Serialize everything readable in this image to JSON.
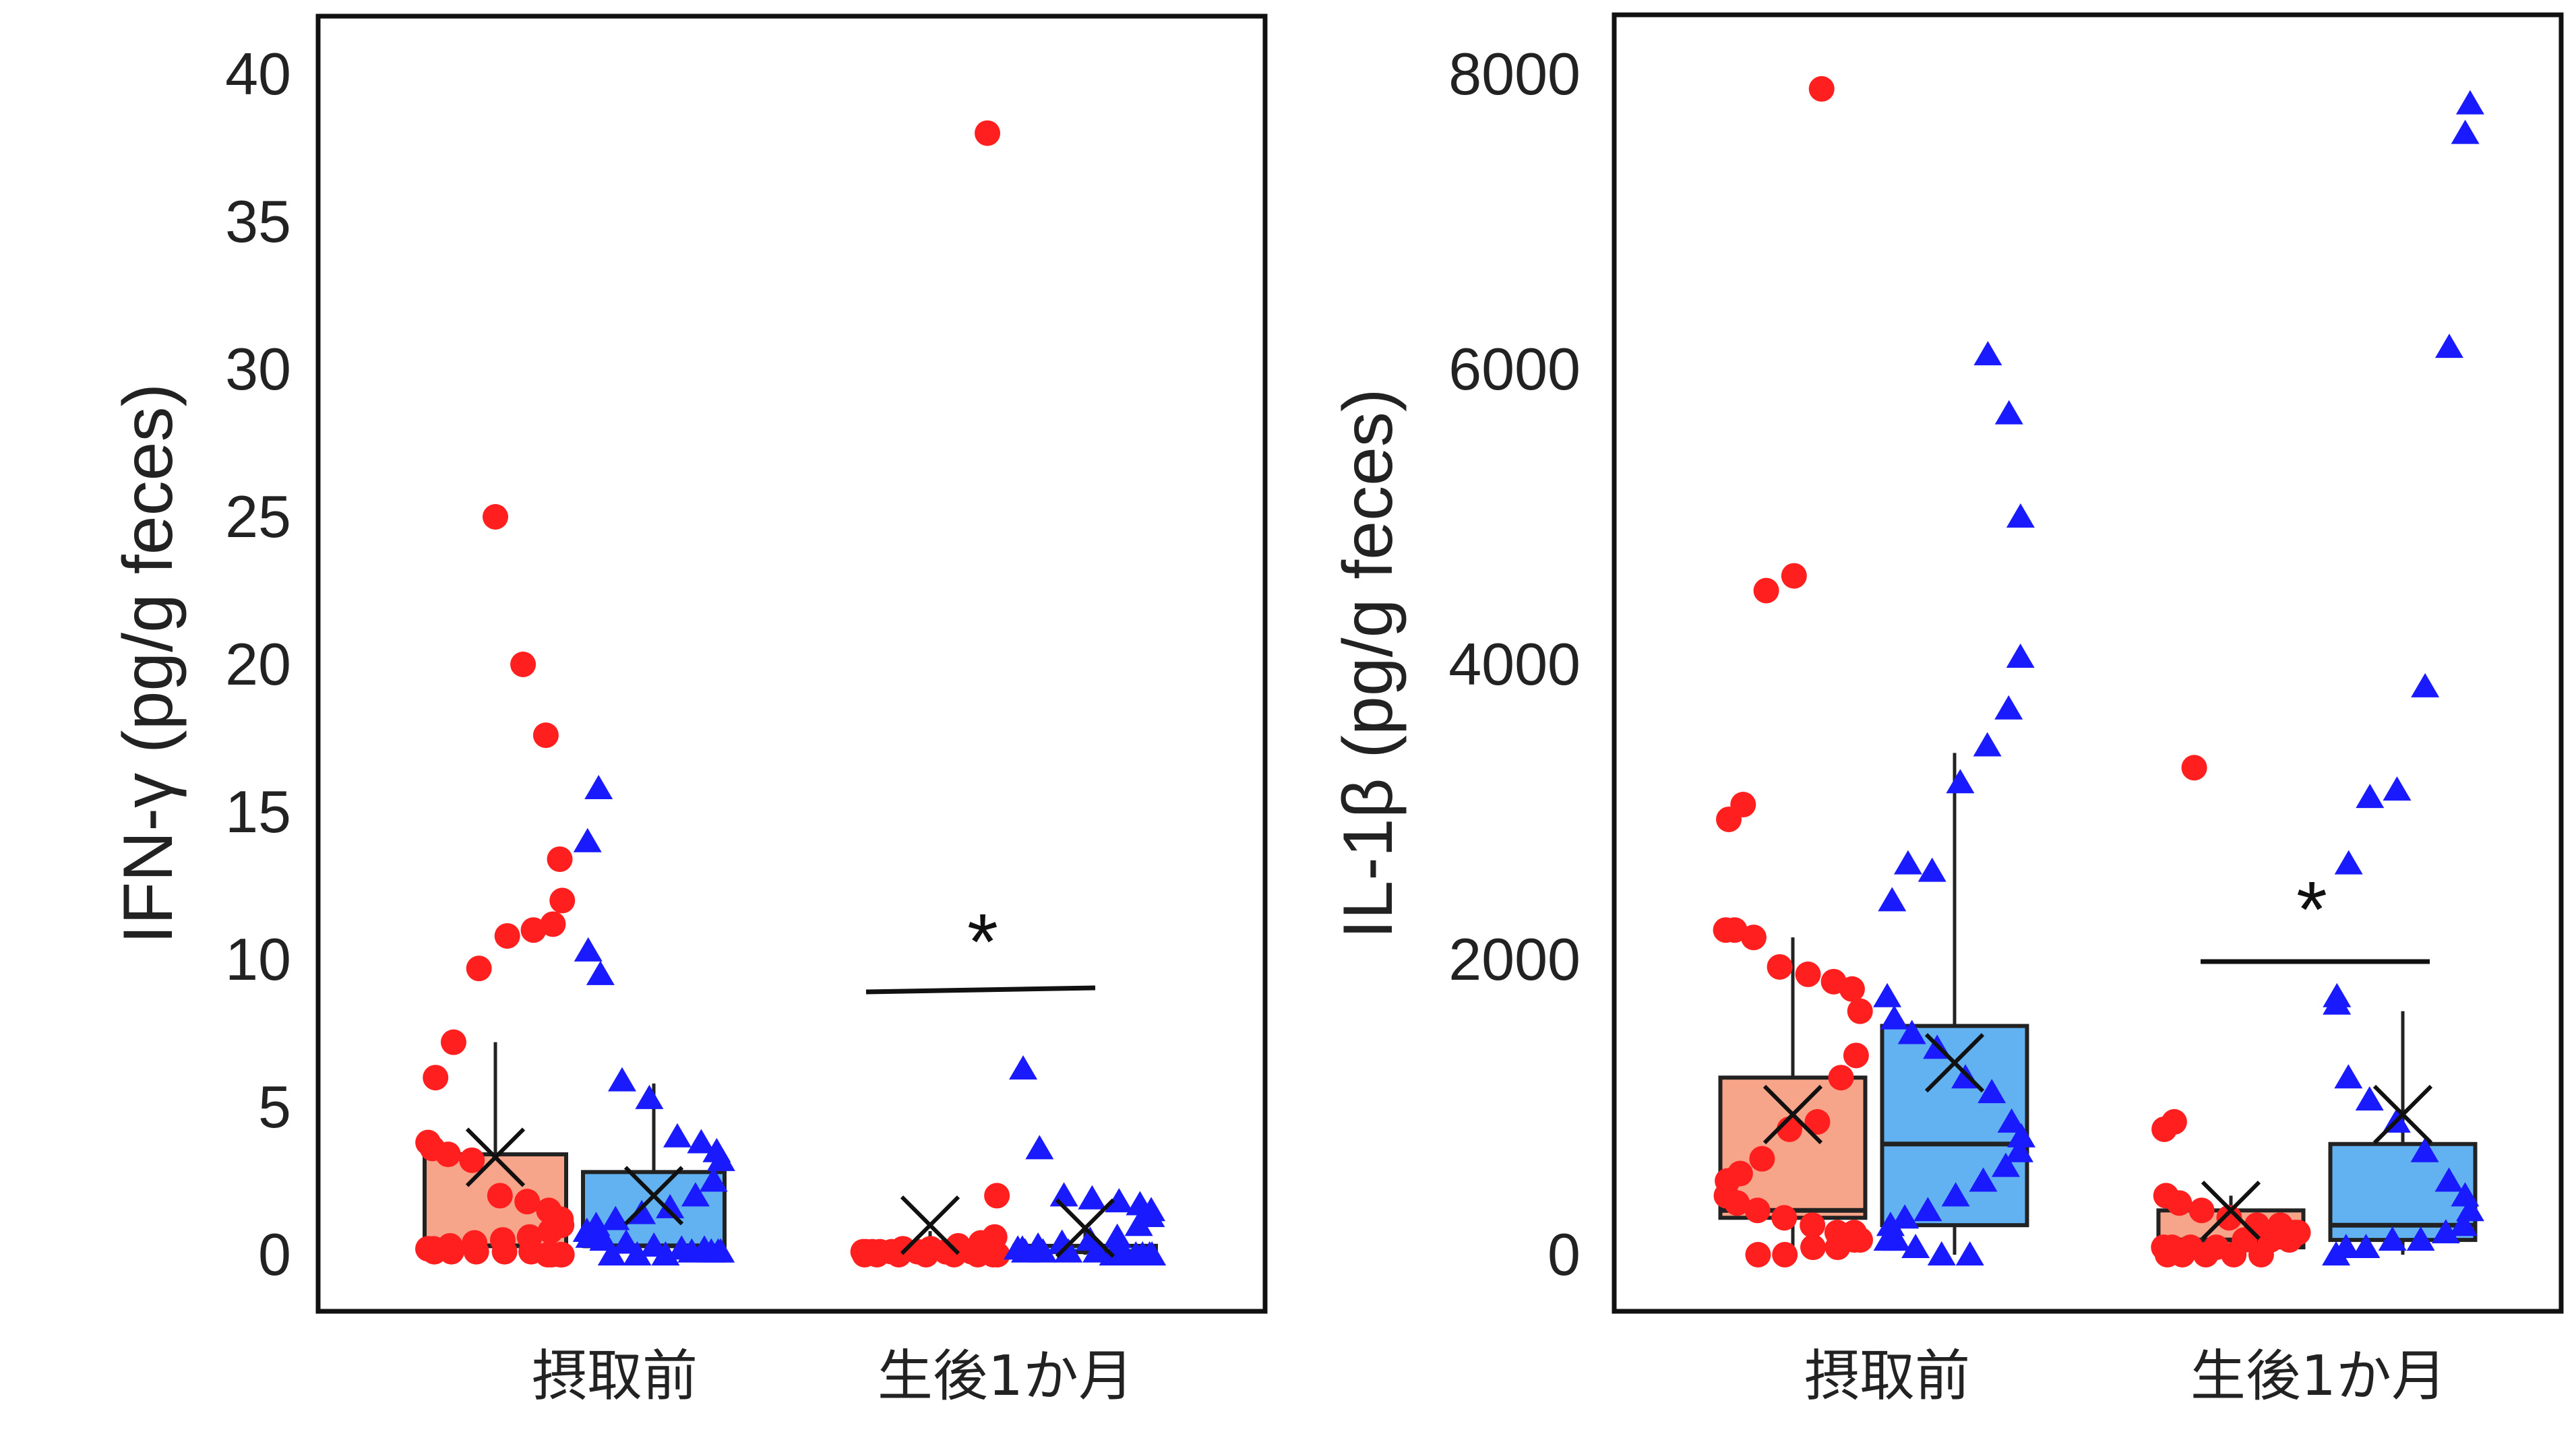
{
  "chart_data": [
    {
      "type": "box",
      "ylabel": "IFN-γ (pg/g feces)",
      "ylim": [
        0,
        40
      ],
      "yticks": [
        0,
        5,
        10,
        15,
        20,
        25,
        30,
        35,
        40
      ],
      "categories": [
        "摂取前",
        "生後1か月"
      ],
      "grid": false,
      "significance": [
        {
          "category": "生後1か月",
          "label": "*"
        }
      ],
      "groups": [
        {
          "marker": "circle",
          "color": "#ff1f1f",
          "box_color": "#f7a58a",
          "boxes": [
            {
              "q1": 0.3,
              "median": 0.3,
              "q3": 3.4,
              "mean": 3.3,
              "whisker_low": 0,
              "whisker_high": 7.2
            },
            {
              "q1": 0.1,
              "median": 0.1,
              "q3": 0.3,
              "mean": 1.0,
              "whisker_low": 0,
              "whisker_high": 0.8
            }
          ],
          "points": [
            [
              25.0,
              20.0,
              17.6,
              13.4,
              12.0,
              11.2,
              11.0,
              10.8,
              9.7,
              7.2,
              6.0,
              3.8,
              3.6,
              3.4,
              3.2,
              2.0,
              1.8,
              1.5,
              1.2,
              1.0,
              0.8,
              0.6,
              0.5,
              0.4,
              0.3,
              0.2,
              0.2,
              0.1,
              0.1,
              0.1,
              0.1,
              0.1,
              0.0,
              0.0,
              0.0,
              0.0
            ],
            [
              38.0,
              2.0,
              0.6,
              0.4,
              0.3,
              0.2,
              0.2,
              0.1,
              0.1,
              0.1,
              0.1,
              0.1,
              0.1,
              0.1,
              0.1,
              0.1,
              0.0,
              0.0,
              0.0,
              0.0,
              0.0,
              0.0,
              0.0,
              0.0
            ]
          ]
        },
        {
          "marker": "triangle",
          "color": "#1a1aff",
          "box_color": "#62b2f2",
          "boxes": [
            {
              "q1": 0.3,
              "median": 0.3,
              "q3": 2.8,
              "mean": 2.0,
              "whisker_low": 0,
              "whisker_high": 5.8
            },
            {
              "q1": 0.1,
              "median": 0.1,
              "q3": 0.3,
              "mean": 0.9,
              "whisker_low": 0,
              "whisker_high": 0.8
            }
          ],
          "points": [
            [
              15.8,
              14.0,
              10.3,
              9.5,
              5.9,
              5.3,
              4.0,
              3.8,
              3.5,
              3.2,
              2.5,
              2.0,
              1.6,
              1.4,
              1.2,
              1.0,
              0.8,
              0.6,
              0.5,
              0.4,
              0.3,
              0.2,
              0.2,
              0.1,
              0.1,
              0.1,
              0.1,
              0.0,
              0.0,
              0.0
            ],
            [
              6.3,
              3.6,
              2.0,
              1.9,
              1.8,
              1.7,
              1.5,
              1.3,
              1.0,
              0.6,
              0.5,
              0.4,
              0.3,
              0.2,
              0.2,
              0.1,
              0.1,
              0.1,
              0.1,
              0.1,
              0.0,
              0.0,
              0.0,
              0.0,
              0.0
            ]
          ]
        }
      ]
    },
    {
      "type": "box",
      "ylabel": "IL-1β (pg/g feces)",
      "ylim": [
        0,
        8000
      ],
      "yticks": [
        0,
        2000,
        4000,
        6000,
        8000
      ],
      "categories": [
        "摂取前",
        "生後1か月"
      ],
      "grid": false,
      "significance": [
        {
          "category": "生後1か月",
          "label": "*"
        }
      ],
      "groups": [
        {
          "marker": "circle",
          "color": "#ff1f1f",
          "box_color": "#f7a58a",
          "boxes": [
            {
              "q1": 250,
              "median": 300,
              "q3": 1200,
              "mean": 950,
              "whisker_low": 0,
              "whisker_high": 2150
            },
            {
              "q1": 50,
              "median": 100,
              "q3": 300,
              "mean": 300,
              "whisker_low": 0,
              "whisker_high": 400
            }
          ],
          "points": [
            [
              7900,
              4600,
              4500,
              3050,
              2950,
              2200,
              2200,
              2150,
              1950,
              1900,
              1850,
              1800,
              1650,
              1350,
              1200,
              900,
              850,
              650,
              550,
              500,
              400,
              350,
              300,
              250,
              200,
              150,
              150,
              100,
              100,
              50,
              50,
              0,
              0
            ],
            [
              3300,
              900,
              850,
              400,
              350,
              300,
              250,
              200,
              200,
              150,
              150,
              100,
              100,
              100,
              50,
              50,
              50,
              50,
              0,
              0,
              0,
              0,
              0
            ]
          ]
        },
        {
          "marker": "triangle",
          "color": "#1a1aff",
          "box_color": "#62b2f2",
          "boxes": [
            {
              "q1": 200,
              "median": 750,
              "q3": 1550,
              "mean": 1300,
              "whisker_low": 0,
              "whisker_high": 3400
            },
            {
              "q1": 100,
              "median": 200,
              "q3": 750,
              "mean": 950,
              "whisker_low": 0,
              "whisker_high": 1650
            }
          ],
          "points": [
            [
              6100,
              5700,
              5000,
              4050,
              3700,
              3450,
              3200,
              2600,
              2650,
              2400,
              1750,
              1600,
              1500,
              1400,
              1200,
              1100,
              900,
              800,
              700,
              600,
              500,
              400,
              300,
              250,
              200,
              100,
              100,
              50,
              0,
              0
            ],
            [
              7800,
              7600,
              6150,
              3850,
              3150,
              3100,
              2650,
              1750,
              1700,
              1200,
              1050,
              900,
              700,
              500,
              400,
              300,
              200,
              150,
              100,
              100,
              50,
              50,
              0
            ]
          ]
        }
      ]
    }
  ]
}
